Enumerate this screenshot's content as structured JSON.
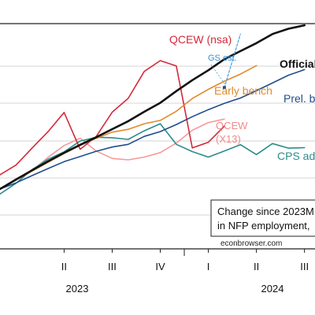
{
  "chart_data": {
    "type": "line",
    "title": "",
    "xlabel": "",
    "ylabel": "",
    "x_tick_labels": [
      "II",
      "III",
      "IV",
      "I",
      "II",
      "III"
    ],
    "x_tick_values": [
      "2023Q2",
      "2023Q3",
      "2023Q4",
      "2024Q1",
      "2024Q2",
      "2024Q3"
    ],
    "year_labels": [
      "2023",
      "2024"
    ],
    "x_axis_note": "monthly, 2023M01 to 2024M08",
    "y_note": "y values are in arbitrary units; the visible portion of the chart shows no y tick labels",
    "grid": "horizontal",
    "series": [
      {
        "name": "QCEW (nsa)",
        "color": "#d42a3a",
        "x": [
          "2023-01",
          "2023-02",
          "2023-03",
          "2023-04",
          "2023-05",
          "2023-06",
          "2023-07",
          "2023-08",
          "2023-09",
          "2023-10",
          "2023-11",
          "2023-12",
          "2024-01",
          "2024-02",
          "2024-03"
        ],
        "y": [
          86,
          145,
          247,
          347,
          463,
          240,
          317,
          465,
          548,
          711,
          776,
          744,
          248,
          283,
          380
        ]
      },
      {
        "name": "QCEW (X13)",
        "color": "#f59a9a",
        "x": [
          "2023-01",
          "2023-02",
          "2023-03",
          "2023-04",
          "2023-05",
          "2023-06",
          "2023-07",
          "2023-08",
          "2023-09",
          "2023-10",
          "2023-11",
          "2023-12",
          "2024-01",
          "2024-02",
          "2024-03"
        ],
        "y": [
          0,
          62,
          110,
          192,
          263,
          307,
          230,
          185,
          176,
          193,
          220,
          278,
          355,
          402,
          423
        ]
      },
      {
        "name": "CPS adj",
        "color": "#2e8b8b",
        "x": [
          "2023-01",
          "2023-02",
          "2023-03",
          "2023-04",
          "2023-05",
          "2023-06",
          "2023-07",
          "2023-08",
          "2023-09",
          "2023-10",
          "2023-11",
          "2023-12",
          "2024-01",
          "2024-02",
          "2024-03",
          "2024-04",
          "2024-05",
          "2024-06",
          "2024-07",
          "2024-08"
        ],
        "y": [
          -30,
          35,
          117,
          180,
          225,
          290,
          313,
          310,
          300,
          352,
          395,
          270,
          226,
          193,
          230,
          268,
          208,
          275,
          247,
          250
        ]
      },
      {
        "name": "Official",
        "color": "#111111",
        "x": [
          "2023-01",
          "2023-02",
          "2023-03",
          "2023-04",
          "2023-05",
          "2023-06",
          "2023-07",
          "2023-08",
          "2023-09",
          "2023-10",
          "2023-11",
          "2023-12",
          "2024-01",
          "2024-02",
          "2024-03",
          "2024-04",
          "2024-05",
          "2024-06",
          "2024-07",
          "2024-08"
        ],
        "y": [
          0,
          57,
          113,
          167,
          219,
          267,
          313,
          362,
          410,
          467,
          521,
          592,
          658,
          718,
          785,
          834,
          882,
          937,
          969,
          990
        ]
      },
      {
        "name": "Prel. b",
        "color": "#1f4e8c",
        "x": [
          "2023-01",
          "2023-02",
          "2023-03",
          "2023-04",
          "2023-05",
          "2023-06",
          "2023-07",
          "2023-08",
          "2023-09",
          "2023-10",
          "2023-11",
          "2023-12",
          "2024-01",
          "2024-02",
          "2024-03",
          "2024-04",
          "2024-05",
          "2024-06",
          "2024-07",
          "2024-08"
        ],
        "y": [
          0,
          37,
          81,
          124,
          165,
          196,
          228,
          254,
          270,
          318,
          347,
          390,
          437,
          480,
          518,
          550,
          595,
          641,
          688,
          722
        ]
      },
      {
        "name": "Early bench",
        "color": "#e08a2c",
        "x": [
          "2023-01",
          "2023-02",
          "2023-03",
          "2023-04",
          "2023-05",
          "2023-06",
          "2023-07",
          "2023-08",
          "2023-09",
          "2023-10",
          "2023-11",
          "2023-12",
          "2024-01",
          "2024-02",
          "2024-03",
          "2024-04",
          "2024-05"
        ],
        "y": [
          0,
          55,
          108,
          162,
          214,
          264,
          306,
          344,
          361,
          395,
          415,
          470,
          547,
          603,
          652,
          695,
          746
        ]
      },
      {
        "name": "",
        "color": "#4aa0d8",
        "style": "dashed",
        "x": [
          "2024-03",
          "2024-04"
        ],
        "y": [
          613,
          937
        ]
      }
    ],
    "points": [
      {
        "name": "GS est.",
        "x": "2024-03",
        "y": 613,
        "color": "#1f4e8c"
      }
    ],
    "annotations": [
      {
        "text": "QCEW (nsa)",
        "color": "#d42a3a"
      },
      {
        "text": "GS est.",
        "color": "#3a8fd0"
      },
      {
        "text": "Official",
        "color": "#111111"
      },
      {
        "text": "Early bench",
        "color": "#e08a2c"
      },
      {
        "text": "Prel. b",
        "color": "#1f4e8c"
      },
      {
        "text": "QCEW",
        "color": "#f08a8a"
      },
      {
        "text": "(X13)",
        "color": "#f08a8a"
      },
      {
        "text": "CPS adj",
        "color": "#2e8b8b"
      }
    ],
    "legend_box": {
      "lines": [
        "Change since 2023M",
        "in NFP employment,"
      ],
      "placement": "bottom-right"
    },
    "source": "econbrowser.com"
  }
}
